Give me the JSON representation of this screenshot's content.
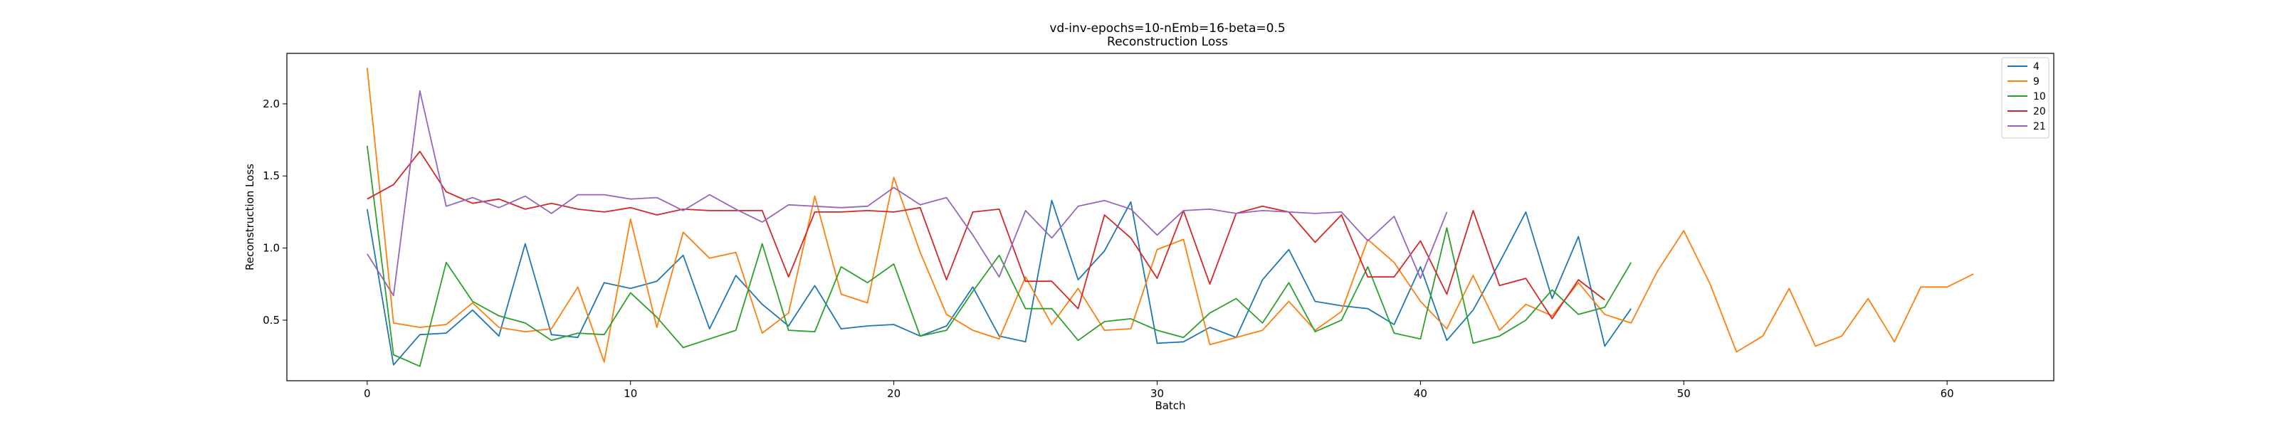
{
  "chart_data": {
    "type": "line",
    "title": "vd-inv-epochs=10-nEmb=16-beta=0.5",
    "subtitle": "Reconstruction Loss",
    "xlabel": "Batch",
    "ylabel": "Reconstruction Loss",
    "xlim": [
      -3.05,
      64.05
    ],
    "ylim": [
      0.08,
      2.35
    ],
    "xticks": [
      0,
      10,
      20,
      30,
      40,
      50,
      60
    ],
    "yticks": [
      0.5,
      1.0,
      1.5,
      2.0
    ],
    "ytick_labels": [
      "0.5",
      "1.0",
      "1.5",
      "2.0"
    ],
    "grid": false,
    "legend_position": "top-right",
    "series": [
      {
        "name": "4",
        "color": "#1f77b4",
        "values": [
          1.27,
          0.19,
          0.4,
          0.41,
          0.57,
          0.39,
          1.03,
          0.4,
          0.38,
          0.76,
          0.72,
          0.77,
          0.95,
          0.44,
          0.81,
          0.61,
          0.46,
          0.74,
          0.44,
          0.46,
          0.47,
          0.39,
          0.46,
          0.73,
          0.39,
          0.35,
          1.33,
          0.78,
          0.98,
          1.32,
          0.34,
          0.35,
          0.45,
          0.38,
          0.78,
          0.99,
          0.63,
          0.6,
          0.58,
          0.47,
          0.87,
          0.36,
          0.57,
          0.9,
          1.25,
          0.65,
          1.08,
          0.32,
          0.58
        ]
      },
      {
        "name": "9",
        "color": "#ff7f0e",
        "values": [
          2.25,
          0.48,
          0.45,
          0.47,
          0.62,
          0.45,
          0.42,
          0.44,
          0.73,
          0.21,
          1.2,
          0.45,
          1.11,
          0.93,
          0.97,
          0.41,
          0.55,
          1.36,
          0.68,
          0.62,
          1.49,
          0.97,
          0.54,
          0.43,
          0.37,
          0.8,
          0.47,
          0.72,
          0.43,
          0.44,
          0.99,
          1.06,
          0.33,
          0.38,
          0.43,
          0.63,
          0.43,
          0.56,
          1.06,
          0.9,
          0.63,
          0.44,
          0.81,
          0.43,
          0.61,
          0.53,
          0.76,
          0.54,
          0.48,
          0.84,
          1.12,
          0.75,
          0.28,
          0.39,
          0.72,
          0.32,
          0.39,
          0.65,
          0.35,
          0.73,
          0.73,
          0.82
        ]
      },
      {
        "name": "10",
        "color": "#2ca02c",
        "values": [
          1.71,
          0.26,
          0.18,
          0.9,
          0.63,
          0.53,
          0.48,
          0.36,
          0.41,
          0.4,
          0.69,
          0.52,
          0.31,
          0.37,
          0.43,
          1.03,
          0.43,
          0.42,
          0.87,
          0.76,
          0.89,
          0.39,
          0.43,
          0.7,
          0.95,
          0.58,
          0.58,
          0.36,
          0.49,
          0.51,
          0.43,
          0.38,
          0.55,
          0.65,
          0.48,
          0.76,
          0.42,
          0.5,
          0.87,
          0.41,
          0.37,
          1.14,
          0.34,
          0.39,
          0.5,
          0.71,
          0.54,
          0.59,
          0.9
        ]
      },
      {
        "name": "20",
        "color": "#d62728",
        "values": [
          1.34,
          1.44,
          1.67,
          1.39,
          1.31,
          1.34,
          1.27,
          1.31,
          1.27,
          1.25,
          1.28,
          1.23,
          1.27,
          1.26,
          1.26,
          1.26,
          0.8,
          1.25,
          1.25,
          1.26,
          1.25,
          1.28,
          0.78,
          1.25,
          1.27,
          0.77,
          0.77,
          0.58,
          1.23,
          1.07,
          0.79,
          1.26,
          0.75,
          1.24,
          1.29,
          1.25,
          1.04,
          1.23,
          0.8,
          0.8,
          1.05,
          0.68,
          1.26,
          0.74,
          0.79,
          0.51,
          0.78,
          0.64
        ]
      },
      {
        "name": "21",
        "color": "#9467bd",
        "values": [
          0.96,
          0.67,
          2.09,
          1.29,
          1.35,
          1.28,
          1.36,
          1.24,
          1.37,
          1.37,
          1.34,
          1.35,
          1.26,
          1.37,
          1.27,
          1.18,
          1.3,
          1.29,
          1.28,
          1.29,
          1.42,
          1.3,
          1.35,
          1.09,
          0.8,
          1.26,
          1.07,
          1.29,
          1.33,
          1.27,
          1.09,
          1.26,
          1.27,
          1.24,
          1.26,
          1.25,
          1.24,
          1.25,
          1.05,
          1.22,
          0.79,
          1.25
        ]
      }
    ]
  }
}
